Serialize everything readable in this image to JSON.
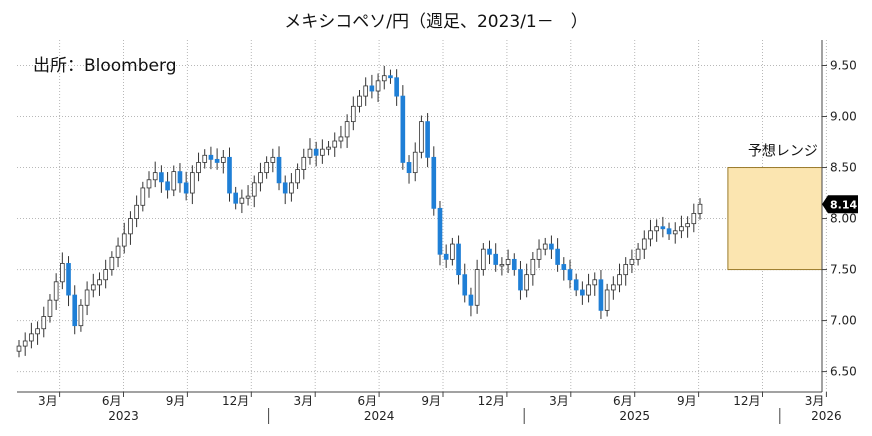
{
  "chart_data": {
    "type": "candlestick",
    "title": "メキシコペソ/円（週足、2023/1－　）",
    "source": "出所：Bloomberg",
    "ylim": [
      6.3,
      9.75
    ],
    "yticks": [
      "6.50",
      "7.00",
      "7.50",
      "8.00",
      "8.50",
      "9.00",
      "9.50"
    ],
    "xticks": [
      {
        "label": "3月",
        "month": "2023-03"
      },
      {
        "label": "6月",
        "month": "2023-06"
      },
      {
        "label": "9月",
        "month": "2023-09"
      },
      {
        "label": "12月",
        "month": "2023-12"
      },
      {
        "label": "3月",
        "month": "2024-03"
      },
      {
        "label": "6月",
        "month": "2024-06"
      },
      {
        "label": "9月",
        "month": "2024-09"
      },
      {
        "label": "12月",
        "month": "2024-12"
      },
      {
        "label": "3月",
        "month": "2025-03"
      },
      {
        "label": "6月",
        "month": "2025-06"
      },
      {
        "label": "9月",
        "month": "2025-09"
      },
      {
        "label": "12月",
        "month": "2025-12"
      },
      {
        "label": "3月",
        "month": "2026-03"
      }
    ],
    "years": [
      {
        "label": "2023",
        "month": "2023-06"
      },
      {
        "label": "2024",
        "month": "2024-06"
      },
      {
        "label": "2025",
        "month": "2025-06"
      },
      {
        "label": "2026",
        "month": "2026-03"
      }
    ],
    "last_value": "8.14",
    "forecast_range": {
      "label": "予想レンジ",
      "low": 7.5,
      "high": 8.5,
      "from": "2025-10",
      "to": "2026-04"
    },
    "weekly_close": [
      6.75,
      6.8,
      6.87,
      6.92,
      7.04,
      7.2,
      7.38,
      7.56,
      7.25,
      6.95,
      7.15,
      7.3,
      7.35,
      7.4,
      7.5,
      7.62,
      7.73,
      7.85,
      8.0,
      8.13,
      8.3,
      8.38,
      8.45,
      8.36,
      8.28,
      8.46,
      8.35,
      8.25,
      8.45,
      8.55,
      8.62,
      8.58,
      8.55,
      8.6,
      8.25,
      8.15,
      8.2,
      8.22,
      8.35,
      8.45,
      8.55,
      8.6,
      8.35,
      8.25,
      8.35,
      8.48,
      8.6,
      8.68,
      8.62,
      8.68,
      8.7,
      8.76,
      8.8,
      8.95,
      9.1,
      9.2,
      9.3,
      9.25,
      9.35,
      9.4,
      9.38,
      9.2,
      8.55,
      8.45,
      8.65,
      8.95,
      8.6,
      8.1,
      7.65,
      7.6,
      7.75,
      7.45,
      7.25,
      7.15,
      7.5,
      7.7,
      7.65,
      7.55,
      7.55,
      7.6,
      7.5,
      7.3,
      7.45,
      7.6,
      7.7,
      7.75,
      7.7,
      7.55,
      7.5,
      7.4,
      7.3,
      7.25,
      7.35,
      7.4,
      7.1,
      7.3,
      7.35,
      7.45,
      7.55,
      7.6,
      7.7,
      7.8,
      7.88,
      7.92,
      7.9,
      7.85,
      7.88,
      7.92,
      7.95,
      8.05,
      8.14
    ]
  }
}
